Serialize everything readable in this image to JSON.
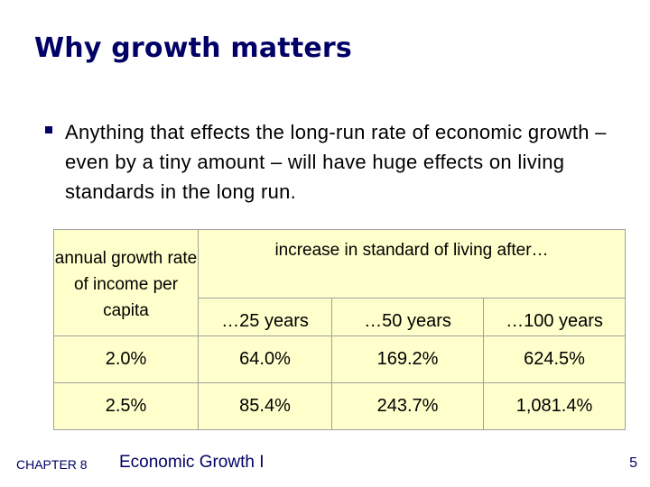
{
  "title": "Why growth matters",
  "bullet": {
    "text": "Anything that effects the long-run rate of economic growth – even by a tiny amount – will have huge effects on living standards in the long run."
  },
  "table": {
    "header_rate": "annual growth rate of income per capita",
    "header_increase": "increase in standard of living after…",
    "years": [
      "…25 years",
      "…50 years",
      "…100 years"
    ],
    "rows": [
      {
        "rate": "2.0%",
        "values": [
          "64.0%",
          "169.2%",
          "624.5%"
        ]
      },
      {
        "rate": "2.5%",
        "values": [
          "85.4%",
          "243.7%",
          "1,081.4%"
        ]
      }
    ]
  },
  "footer": {
    "chapter": "CHAPTER 8",
    "title": "Economic Growth I",
    "page": "5"
  },
  "colors": {
    "title": "#000066",
    "table_bg": "#ffffcc",
    "table_border": "#a0a0a0"
  }
}
